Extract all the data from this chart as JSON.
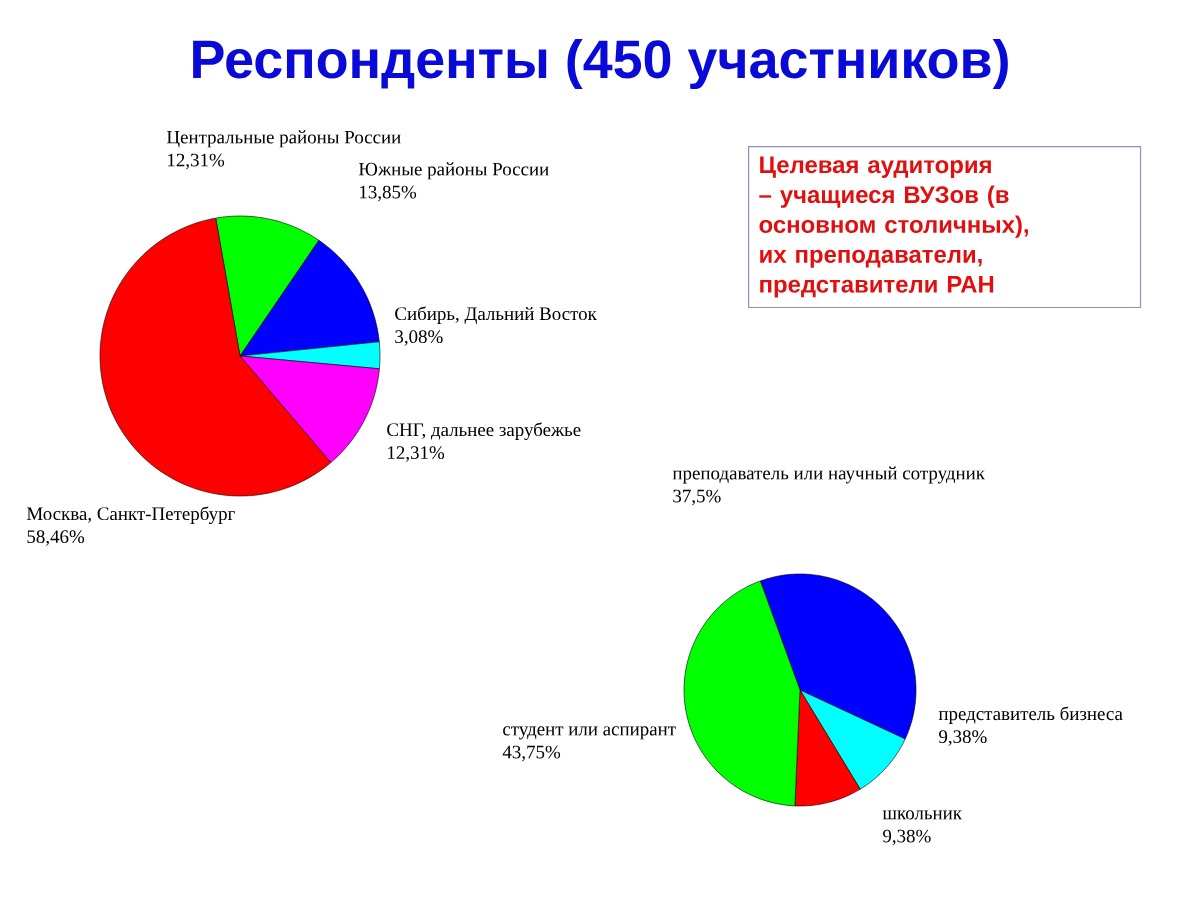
{
  "chart_data": [
    {
      "type": "pie",
      "title": "Респонденты (450 участников)",
      "categories": [
        "Центральные районы России",
        "Южные районы России",
        "Сибирь, Дальний Восток",
        "СНГ, дальнее зарубежье",
        "Москва, Санкт-Петербург"
      ],
      "values": [
        12.31,
        13.85,
        3.08,
        12.31,
        58.46
      ],
      "value_labels": [
        "12,31%",
        "13,85%",
        "3,08%",
        "12,31%",
        "58,46%"
      ],
      "colors": [
        "#00ff00",
        "#0000ff",
        "#00ffff",
        "#ff00ff",
        "#ff0000"
      ],
      "annotations": [
        "Целевая аудитория – учащиеся ВУЗов (в основном столичных), их преподаватели, представители РАН"
      ]
    },
    {
      "type": "pie",
      "categories": [
        "преподаватель или научный сотрудник",
        "представитель бизнеса",
        "школьник",
        "студент или аспирант"
      ],
      "values": [
        37.5,
        9.38,
        9.38,
        43.75
      ],
      "value_labels": [
        "37,5%",
        "9,38%",
        "9,38%",
        "43,75%"
      ],
      "colors": [
        "#0000ff",
        "#00ffff",
        "#ff0000",
        "#00ff00"
      ]
    }
  ]
}
